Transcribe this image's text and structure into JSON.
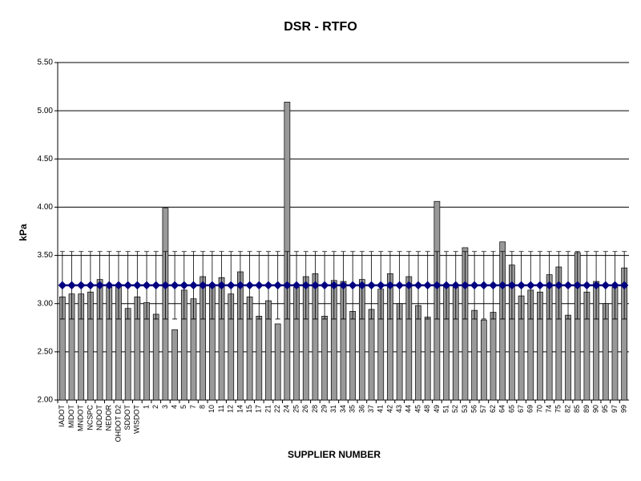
{
  "chart_data": {
    "type": "bar",
    "title": "DSR - RTFO",
    "x_label": "SUPPLIER NUMBER",
    "y_label": "kPa",
    "categories": [
      "IADOT",
      "MIDOT",
      "MNDOT",
      "NCSPC",
      "NDDOT",
      "NEDOR",
      "OHDOT D2",
      "SDDOT",
      "WISDOT",
      "1",
      "2",
      "3",
      "4",
      "5",
      "7",
      "8",
      "10",
      "11",
      "12",
      "14",
      "15",
      "17",
      "21",
      "22",
      "24",
      "25",
      "26",
      "28",
      "29",
      "31",
      "34",
      "35",
      "36",
      "37",
      "41",
      "42",
      "43",
      "44",
      "45",
      "48",
      "49",
      "51",
      "52",
      "53",
      "56",
      "57",
      "62",
      "64",
      "65",
      "67",
      "69",
      "70",
      "74",
      "75",
      "82",
      "85",
      "89",
      "90",
      "95",
      "97",
      "99"
    ],
    "ylim": [
      2,
      5.5
    ],
    "yticks": [
      {
        "value": 2,
        "label": "2.00"
      },
      {
        "value": 2.5,
        "label": "2.50"
      },
      {
        "value": 3,
        "label": "3.00"
      },
      {
        "value": 3.5,
        "label": "3.50"
      },
      {
        "value": 4,
        "label": "4.00"
      },
      {
        "value": 4.5,
        "label": "4.50"
      },
      {
        "value": 5,
        "label": "5.00"
      },
      {
        "value": 5.5,
        "label": "5.50"
      }
    ],
    "grid": true,
    "series": [
      {
        "type": "bar",
        "color": "#999999",
        "values": [
          3.07,
          3.1,
          3.1,
          3.12,
          3.25,
          3.17,
          3.2,
          2.95,
          3.07,
          3.01,
          2.89,
          3.99,
          2.73,
          3.14,
          3.05,
          3.28,
          3.2,
          3.27,
          3.1,
          3.33,
          3.07,
          2.87,
          3.03,
          2.79,
          5.09,
          3.17,
          3.28,
          3.31,
          2.87,
          3.24,
          3.23,
          2.92,
          3.25,
          2.94,
          3.15,
          3.31,
          3.0,
          3.28,
          2.98,
          2.86,
          4.06,
          3.18,
          3.17,
          3.58,
          2.93,
          2.83,
          2.91,
          3.64,
          3.4,
          3.08,
          3.14,
          3.12,
          3.3,
          3.38,
          2.88,
          3.53,
          3.12,
          3.23,
          3.0,
          3.17,
          3.37
        ]
      },
      {
        "type": "line",
        "color": "#000080",
        "values": [
          3.19,
          3.19,
          3.19,
          3.19,
          3.19,
          3.19,
          3.19,
          3.19,
          3.19,
          3.19,
          3.19,
          3.19,
          3.19,
          3.19,
          3.19,
          3.19,
          3.19,
          3.19,
          3.19,
          3.19,
          3.19,
          3.19,
          3.19,
          3.19,
          3.19,
          3.19,
          3.19,
          3.19,
          3.19,
          3.19,
          3.19,
          3.19,
          3.19,
          3.19,
          3.19,
          3.19,
          3.19,
          3.19,
          3.19,
          3.19,
          3.19,
          3.19,
          3.19,
          3.19,
          3.19,
          3.19,
          3.19,
          3.19,
          3.19,
          3.19,
          3.19,
          3.19,
          3.19,
          3.19,
          3.19,
          3.19,
          3.19,
          3.19,
          3.19,
          3.19,
          3.19
        ],
        "errors": [
          0.35,
          0.35,
          0.35,
          0.35,
          0.35,
          0.35,
          0.35,
          0.35,
          0.35,
          0.35,
          0.35,
          0.35,
          0.35,
          0.35,
          0.35,
          0.35,
          0.35,
          0.35,
          0.35,
          0.35,
          0.35,
          0.35,
          0.35,
          0.35,
          0.35,
          0.35,
          0.35,
          0.35,
          0.35,
          0.35,
          0.35,
          0.35,
          0.35,
          0.35,
          0.35,
          0.35,
          0.35,
          0.35,
          0.35,
          0.35,
          0.35,
          0.35,
          0.35,
          0.35,
          0.35,
          0.35,
          0.35,
          0.35,
          0.35,
          0.35,
          0.35,
          0.35,
          0.35,
          0.35,
          0.35,
          0.35,
          0.35,
          0.35,
          0.35,
          0.35,
          0.35
        ]
      }
    ]
  }
}
